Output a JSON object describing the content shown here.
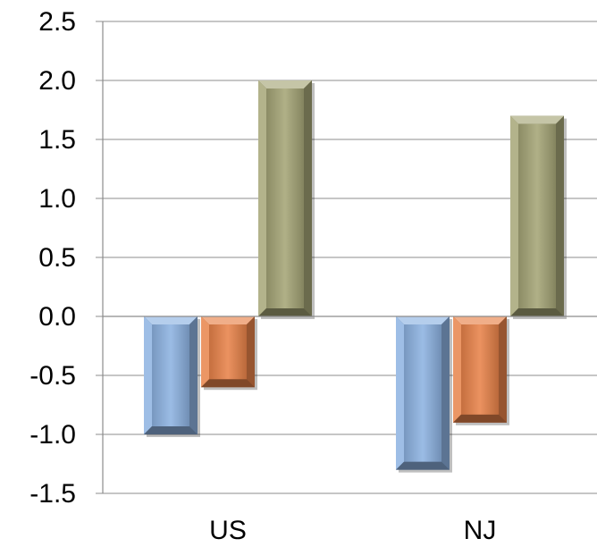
{
  "chart_data": {
    "type": "bar",
    "categories": [
      "US",
      "NJ"
    ],
    "series": [
      {
        "values": [
          -1.0,
          -1.3
        ],
        "color": "#8db3e2"
      },
      {
        "values": [
          -0.6,
          -0.9
        ],
        "color": "#e8834a"
      },
      {
        "values": [
          2.0,
          1.7
        ],
        "color": "#a5a577"
      }
    ],
    "yticks": [
      "-1.5",
      "-1.0",
      "-0.5",
      "0.0",
      "0.5",
      "1.0",
      "1.5",
      "2.0",
      "2.5"
    ],
    "ylim": [
      -1.5,
      2.5
    ],
    "grid": true,
    "legend": false,
    "title": "",
    "xlabel": "",
    "ylabel": ""
  }
}
